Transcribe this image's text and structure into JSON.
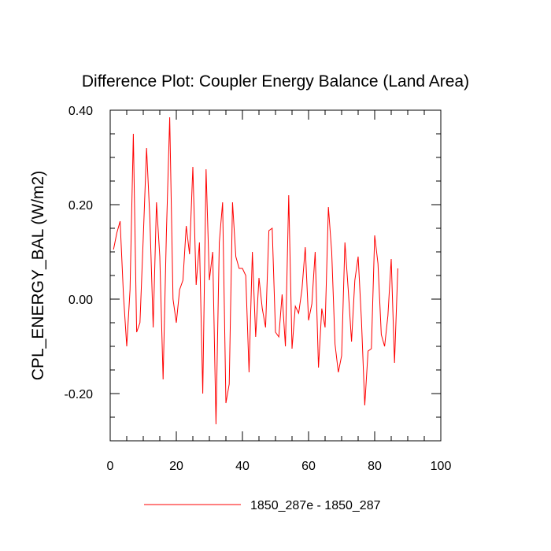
{
  "chart_data": {
    "type": "line",
    "title": "Difference Plot: Coupler Energy Balance (Land Area)",
    "xlabel": "",
    "ylabel": "CPL_ENERGY_BAL  (W/m2)",
    "xlim": [
      0,
      100
    ],
    "ylim": [
      -0.3,
      0.4
    ],
    "x_ticks": [
      0,
      20,
      40,
      60,
      80,
      100
    ],
    "x_tick_labels": [
      "0",
      "20",
      "40",
      "60",
      "80",
      "100"
    ],
    "y_ticks": [
      -0.2,
      0.0,
      0.2,
      0.4
    ],
    "y_tick_labels": [
      "-0.20",
      "0.00",
      "0.20",
      "0.40"
    ],
    "grid": false,
    "legend_position": "bottom",
    "series": [
      {
        "name": "1850_287e - 1850_287",
        "color": "#ff0000",
        "x": [
          1,
          2,
          3,
          4,
          5,
          6,
          7,
          8,
          9,
          10,
          11,
          12,
          13,
          14,
          15,
          16,
          17,
          18,
          19,
          20,
          21,
          22,
          23,
          24,
          25,
          26,
          27,
          28,
          29,
          30,
          31,
          32,
          33,
          34,
          35,
          36,
          37,
          38,
          39,
          40,
          41,
          42,
          43,
          44,
          45,
          46,
          47,
          48,
          49,
          50,
          51,
          52,
          53,
          54,
          55,
          56,
          57,
          58,
          59,
          60,
          61,
          62,
          63,
          64,
          65,
          66,
          67,
          68,
          69,
          70,
          71,
          72,
          73,
          74,
          75,
          76,
          77,
          78,
          79,
          80,
          81,
          82,
          83,
          84,
          85,
          86,
          87
        ],
        "values": [
          0.105,
          0.14,
          0.165,
          0.01,
          -0.1,
          0.02,
          0.35,
          -0.07,
          -0.05,
          0.13,
          0.32,
          0.17,
          -0.06,
          0.205,
          0.09,
          -0.17,
          0.14,
          0.385,
          0.0,
          -0.05,
          0.02,
          0.04,
          0.155,
          0.095,
          0.28,
          0.03,
          0.12,
          -0.2,
          0.275,
          0.04,
          0.1,
          -0.265,
          0.12,
          0.205,
          -0.22,
          -0.18,
          0.205,
          0.09,
          0.065,
          0.065,
          0.05,
          -0.155,
          0.1,
          -0.08,
          0.045,
          -0.02,
          -0.06,
          0.145,
          0.15,
          -0.07,
          -0.08,
          0.01,
          -0.1,
          0.22,
          -0.105,
          -0.015,
          -0.03,
          0.02,
          0.11,
          -0.045,
          -0.01,
          0.1,
          -0.145,
          -0.02,
          -0.06,
          0.195,
          0.1,
          -0.095,
          -0.155,
          -0.12,
          0.12,
          0.02,
          -0.09,
          0.04,
          0.09,
          -0.045,
          -0.225,
          -0.11,
          -0.105,
          0.135,
          0.075,
          -0.075,
          -0.1,
          -0.035,
          0.085,
          -0.135,
          0.065
        ]
      }
    ]
  }
}
